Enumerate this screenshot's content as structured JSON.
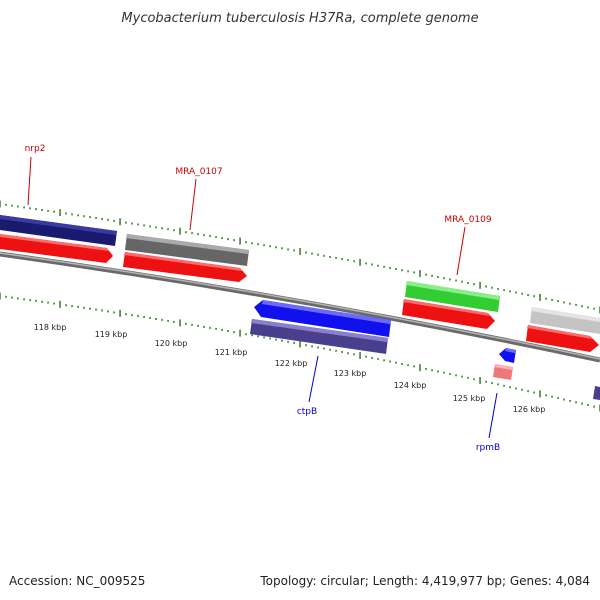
{
  "title": "Mycobacterium tuberculosis H37Ra, complete genome",
  "footer": {
    "accession": "Accession: NC_009525",
    "summary": "Topology: circular; Length: 4,419,977 bp; Genes: 4,084"
  },
  "colors": {
    "forward_label": "#cc0000",
    "reverse_label": "#0000cc",
    "tick_green": "#2e7d1e",
    "backbone": "#8a8a8a"
  },
  "scale_labels": [
    "118 kbp",
    "119 kbp",
    "120 kbp",
    "121 kbp",
    "122 kbp",
    "123 kbp",
    "124 kbp",
    "125 kbp",
    "126 kbp"
  ],
  "gene_labels": [
    {
      "name": "nrp2",
      "strand": "forward"
    },
    {
      "name": "MRA_0107",
      "strand": "forward"
    },
    {
      "name": "MRA_0109",
      "strand": "forward"
    },
    {
      "name": "ctpB",
      "strand": "reverse"
    },
    {
      "name": "rpmB",
      "strand": "reverse"
    }
  ],
  "features": [
    {
      "id": "nrp2-gene",
      "lane": "outer",
      "strand": "forward",
      "color": "#1a1a6e"
    },
    {
      "id": "nrp2-cds",
      "lane": "inner",
      "strand": "forward",
      "color": "#ee1111"
    },
    {
      "id": "mra0107-gene",
      "lane": "outer",
      "strand": "forward",
      "color": "#666666"
    },
    {
      "id": "mra0107-cds",
      "lane": "inner",
      "strand": "forward",
      "color": "#ee1111"
    },
    {
      "id": "mra0109-gene",
      "lane": "outer",
      "strand": "forward",
      "color": "#33cc33"
    },
    {
      "id": "mra0109-cds",
      "lane": "inner",
      "strand": "forward",
      "color": "#ee1111"
    },
    {
      "id": "next-gene",
      "lane": "outer",
      "strand": "forward",
      "color": "#c4c4c4"
    },
    {
      "id": "next-cds",
      "lane": "inner",
      "strand": "forward",
      "color": "#ee1111"
    },
    {
      "id": "ctpB-cds",
      "lane": "inner",
      "strand": "reverse",
      "color": "#1111ee"
    },
    {
      "id": "ctpB-gene",
      "lane": "outer",
      "strand": "reverse",
      "color": "#4a3f8c"
    },
    {
      "id": "rpmB-cds",
      "lane": "inner",
      "strand": "reverse",
      "color": "#1111ee"
    },
    {
      "id": "rpmB-gene",
      "lane": "outer",
      "strand": "reverse",
      "color": "#ee7777"
    },
    {
      "id": "edge-gene",
      "lane": "outer",
      "strand": "reverse",
      "color": "#4a3f8c"
    }
  ]
}
